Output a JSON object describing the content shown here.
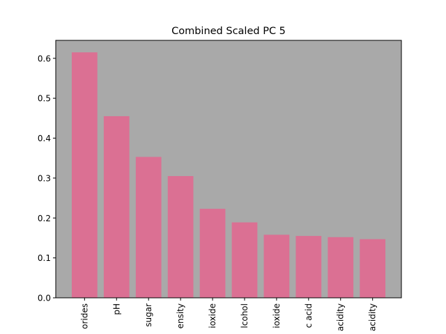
{
  "chart_data": {
    "type": "bar",
    "title": "Combined Scaled PC 5",
    "xlabel": "",
    "ylabel": "",
    "categories": [
      "orides",
      "pH",
      "sugar",
      "ensity",
      "ioxide",
      "lcohol",
      "ioxide",
      "c acid",
      "acidity",
      "acidity"
    ],
    "values": [
      0.615,
      0.455,
      0.353,
      0.305,
      0.223,
      0.189,
      0.158,
      0.155,
      0.152,
      0.147
    ],
    "ylim": [
      0,
      0.645
    ],
    "yticks": [
      0.0,
      0.1,
      0.2,
      0.3,
      0.4,
      0.5,
      0.6
    ],
    "ytick_labels": [
      "0.0",
      "0.1",
      "0.2",
      "0.3",
      "0.4",
      "0.5",
      "0.6"
    ],
    "grid": false,
    "bar_color": "#db7093",
    "background_color": "#a9a9a9"
  }
}
